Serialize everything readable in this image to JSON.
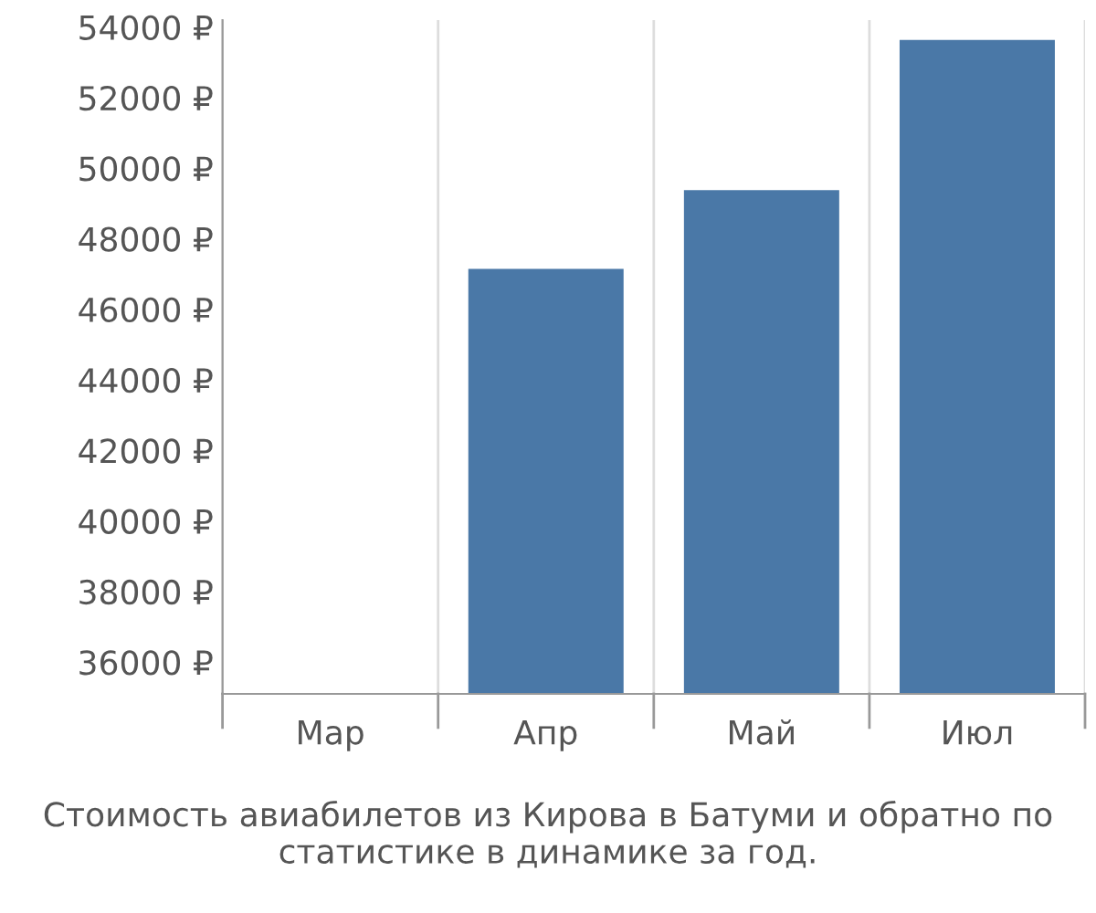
{
  "chart_data": {
    "type": "bar",
    "categories": [
      "Мар",
      "Апр",
      "Май",
      "Июл"
    ],
    "values": [
      null,
      47150,
      49380,
      53640
    ],
    "color": "#4a78a7",
    "ylim": [
      35100,
      54200
    ],
    "yticks": [
      {
        "value": 36000,
        "label": "36000 ₽"
      },
      {
        "value": 38000,
        "label": "38000 ₽"
      },
      {
        "value": 40000,
        "label": "40000 ₽"
      },
      {
        "value": 42000,
        "label": "42000 ₽"
      },
      {
        "value": 44000,
        "label": "44000 ₽"
      },
      {
        "value": 46000,
        "label": "46000 ₽"
      },
      {
        "value": 48000,
        "label": "48000 ₽"
      },
      {
        "value": 50000,
        "label": "50000 ₽"
      },
      {
        "value": 52000,
        "label": "52000 ₽"
      },
      {
        "value": 54000,
        "label": "54000 ₽"
      }
    ],
    "grid": "x",
    "annotations": [
      "Стоимость авиабилетов из Кирова в Батуми и обратно по статистике в динамике за год."
    ]
  }
}
